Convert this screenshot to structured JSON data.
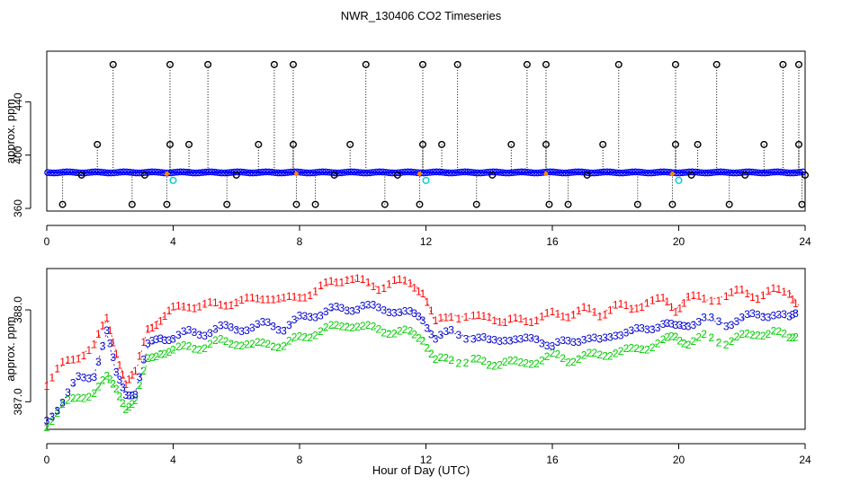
{
  "figure": {
    "title": "NWR_130406  CO2 Timeseries",
    "xlabel": "Hour of Day (UTC)"
  },
  "colors": {
    "axis": "#000000",
    "raw_points": "#000000",
    "smooth_line": "#0000ff",
    "cyan_points": "#00cccc",
    "flag_points": "#ff8800",
    "series1": "#ff0000",
    "series2": "#00cc00",
    "series3": "#0000cc"
  },
  "chart_data": [
    {
      "type": "scatter",
      "name": "top-panel",
      "title": "",
      "xlabel": "",
      "ylabel": "approx. ppm",
      "xlim": [
        0,
        24
      ],
      "ylim": [
        358,
        478
      ],
      "xticks": [
        0,
        4,
        8,
        12,
        16,
        20,
        24
      ],
      "yticks": [
        360,
        400,
        440
      ],
      "baseline": 387,
      "series": [
        {
          "name": "spikes-high",
          "marker": "open-circle",
          "x": [
            2.1,
            3.9,
            5.1,
            7.2,
            7.8,
            10.1,
            11.9,
            13.0,
            15.2,
            15.8,
            18.1,
            19.9,
            21.2,
            23.3,
            23.8
          ],
          "y": [
            468,
            468,
            468,
            468,
            468,
            468,
            468,
            468,
            468,
            468,
            468,
            468,
            468,
            468,
            468
          ]
        },
        {
          "name": "spikes-mid",
          "marker": "open-circle",
          "x": [
            1.6,
            3.9,
            4.5,
            6.7,
            7.8,
            9.6,
            11.9,
            12.5,
            14.7,
            15.8,
            17.6,
            19.9,
            20.6,
            22.7,
            23.8
          ],
          "y": [
            408,
            408,
            408,
            408,
            408,
            408,
            408,
            408,
            408,
            408,
            408,
            408,
            408,
            408,
            408
          ]
        },
        {
          "name": "spikes-low",
          "marker": "open-circle",
          "x": [
            0.5,
            2.7,
            3.8,
            5.7,
            7.9,
            8.5,
            10.7,
            11.8,
            13.6,
            15.9,
            16.5,
            18.7,
            19.8,
            21.6,
            23.9
          ],
          "y": [
            363,
            363,
            363,
            363,
            363,
            363,
            363,
            363,
            363,
            363,
            363,
            363,
            363,
            363,
            363
          ]
        },
        {
          "name": "baseline-dips",
          "marker": "open-circle",
          "x": [
            1.1,
            3.1,
            6.0,
            9.1,
            11.1,
            14.1,
            17.1,
            20.4,
            22.1,
            24.0
          ],
          "y": [
            385,
            385,
            385,
            385,
            385,
            385,
            385,
            385,
            385,
            385
          ]
        },
        {
          "name": "cyan-outliers",
          "marker": "open-circle",
          "x": [
            4.0,
            12.0,
            20.0
          ],
          "y": [
            381,
            381,
            381
          ]
        },
        {
          "name": "flagged",
          "marker": "x",
          "x": [
            3.8,
            7.9,
            11.8,
            15.8,
            19.8
          ],
          "y": [
            386,
            386,
            386,
            386,
            386
          ]
        }
      ]
    },
    {
      "type": "line",
      "name": "bottom-panel",
      "title": "",
      "xlabel": "Hour of Day (UTC)",
      "ylabel": "approx. ppm",
      "xlim": [
        0,
        24
      ],
      "ylim": [
        386.7,
        388.45
      ],
      "xticks": [
        0,
        4,
        8,
        12,
        16,
        20,
        24
      ],
      "yticks": [
        387.0,
        388.0
      ],
      "ytick_labels": [
        "387.0",
        "388.0"
      ],
      "x": [
        0.0,
        0.5,
        1.0,
        1.5,
        1.9,
        2.2,
        2.5,
        2.8,
        3.2,
        3.6,
        4.0,
        4.5,
        5.0,
        5.5,
        6.0,
        6.5,
        7.0,
        7.5,
        8.0,
        8.5,
        9.0,
        9.5,
        10.0,
        10.5,
        11.0,
        11.5,
        11.9,
        12.3,
        12.8,
        13.5,
        14.0,
        14.5,
        15.0,
        15.5,
        16.0,
        16.5,
        17.0,
        17.5,
        18.0,
        18.5,
        19.0,
        19.5,
        19.9,
        20.3,
        20.8,
        21.5,
        22.0,
        22.5,
        23.0,
        23.5,
        23.8
      ],
      "series": [
        {
          "name": "1",
          "symbol": "1",
          "values": [
            387.2,
            387.4,
            387.5,
            387.6,
            387.9,
            387.55,
            387.2,
            387.3,
            387.8,
            387.9,
            388.0,
            388.05,
            388.05,
            388.05,
            388.1,
            388.1,
            388.15,
            388.1,
            388.15,
            388.2,
            388.3,
            388.35,
            388.3,
            388.25,
            388.3,
            388.3,
            388.2,
            387.85,
            387.95,
            387.9,
            387.95,
            387.85,
            387.9,
            387.9,
            387.95,
            387.95,
            388.0,
            387.95,
            388.05,
            388.0,
            388.1,
            388.1,
            388.0,
            388.15,
            388.1,
            388.15,
            388.2,
            388.15,
            388.2,
            388.2,
            388.05
          ]
        },
        {
          "name": "2",
          "symbol": "2",
          "values": [
            386.75,
            386.95,
            387.05,
            387.1,
            387.25,
            387.15,
            386.95,
            387.0,
            387.45,
            387.55,
            387.55,
            387.6,
            387.6,
            387.65,
            387.65,
            387.6,
            387.65,
            387.6,
            387.7,
            387.75,
            387.8,
            387.85,
            387.8,
            387.8,
            387.75,
            387.75,
            387.7,
            387.45,
            387.45,
            387.45,
            387.4,
            387.45,
            387.4,
            387.45,
            387.5,
            387.45,
            387.5,
            387.5,
            387.55,
            387.55,
            387.6,
            387.65,
            387.7,
            387.65,
            387.7,
            387.65,
            387.7,
            387.75,
            387.75,
            387.7,
            387.75
          ]
        },
        {
          "name": "3",
          "symbol": "3",
          "values": [
            386.8,
            387.0,
            387.25,
            387.3,
            387.75,
            387.3,
            387.1,
            387.1,
            387.6,
            387.7,
            387.7,
            387.75,
            387.75,
            387.8,
            387.8,
            387.8,
            387.85,
            387.8,
            387.9,
            387.95,
            388.0,
            388.0,
            388.05,
            388.0,
            388.0,
            387.95,
            387.9,
            387.7,
            387.75,
            387.7,
            387.65,
            387.7,
            387.65,
            387.7,
            387.6,
            387.65,
            387.7,
            387.65,
            387.75,
            387.75,
            387.8,
            387.85,
            387.8,
            387.85,
            387.9,
            387.85,
            387.9,
            387.95,
            387.95,
            387.9,
            388.0
          ]
        }
      ]
    }
  ]
}
